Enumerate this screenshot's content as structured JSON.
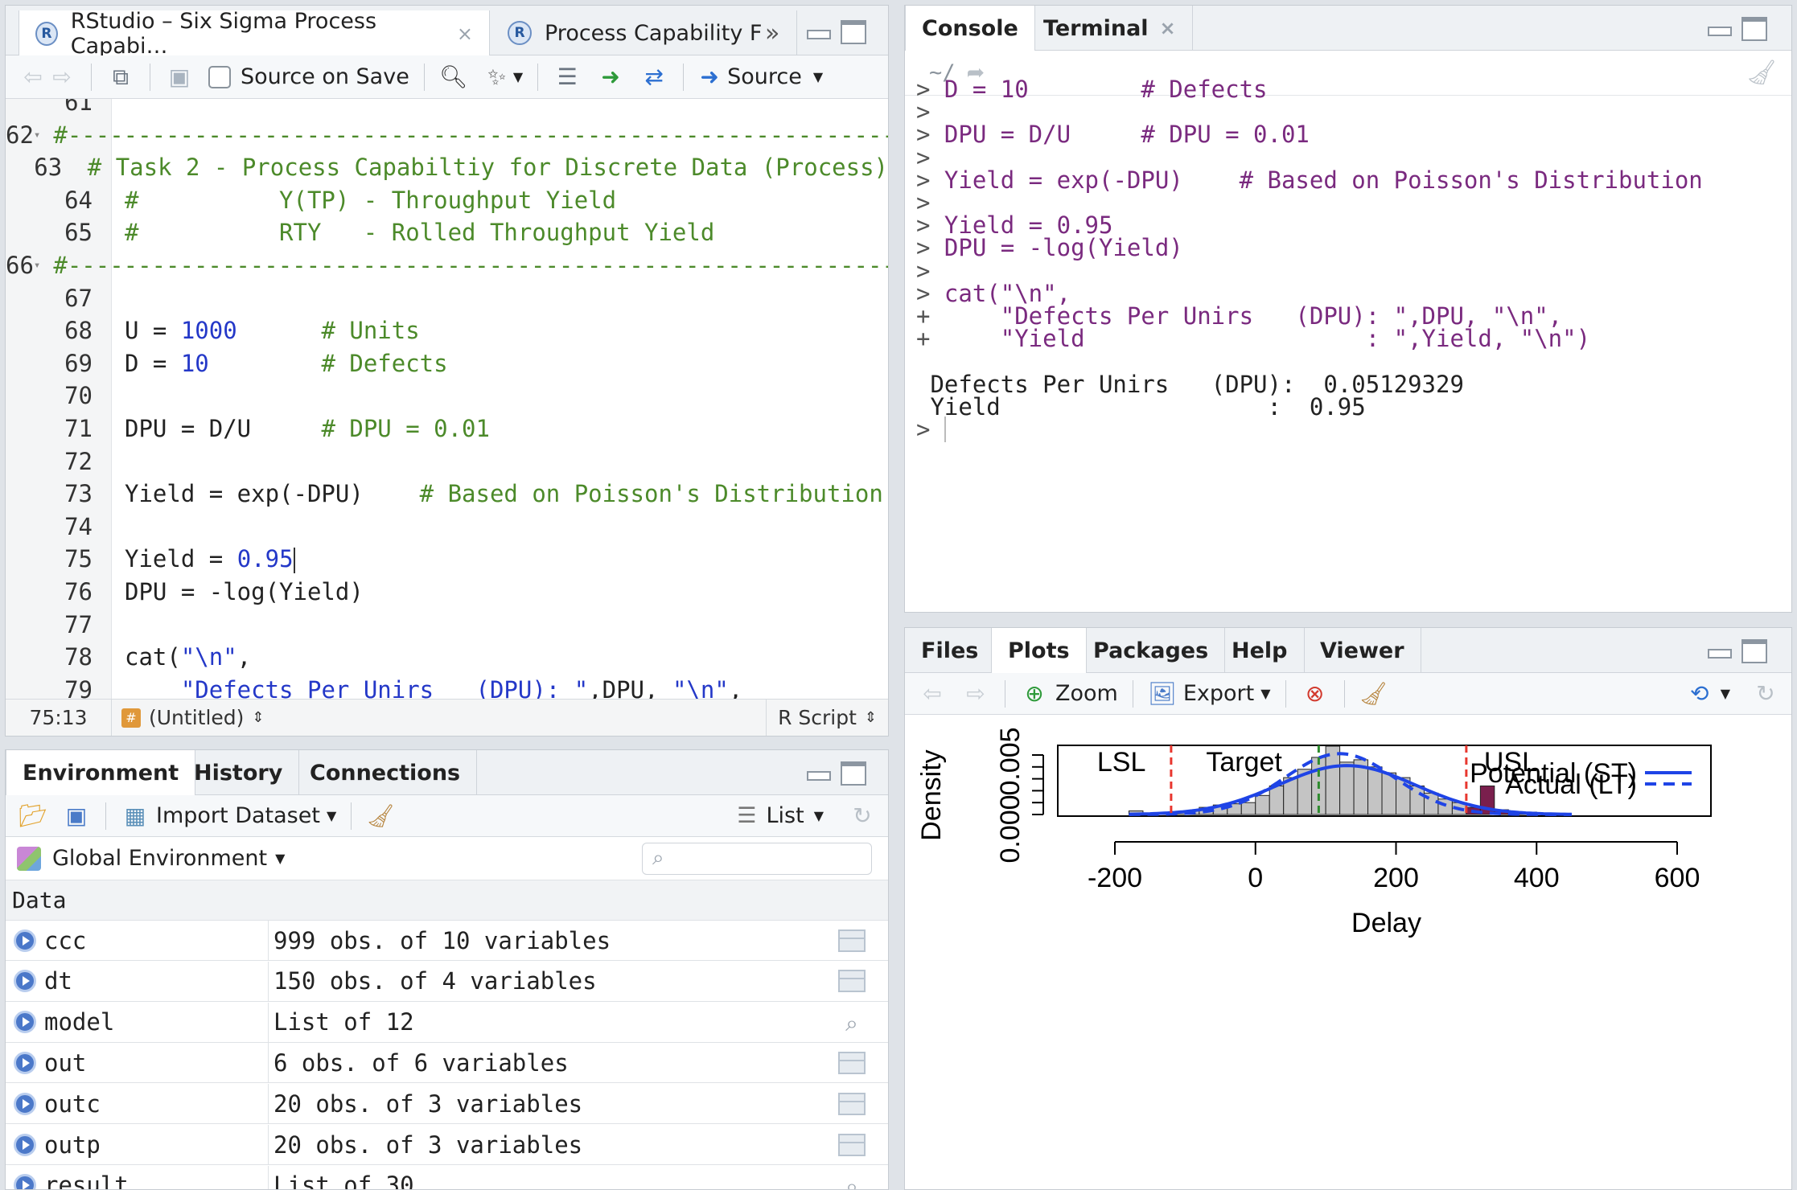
{
  "editor": {
    "tabs": [
      {
        "label": "RStudio – Six Sigma Process Capabi…",
        "close": "×"
      },
      {
        "label": "Process Capability Fu",
        "overflow": "»"
      }
    ],
    "toolbar": {
      "source_on_save": "Source on Save",
      "source": "Source"
    },
    "lines": [
      {
        "n": "61",
        "fold": "",
        "html": ""
      },
      {
        "n": "62",
        "fold": "▾",
        "parts": [
          [
            "cm",
            "#-----------------------------------------------------------"
          ]
        ]
      },
      {
        "n": "63",
        "fold": "",
        "parts": [
          [
            "cm",
            "# Task 2 - Process Capabiltiy for Discrete Data (Process)"
          ]
        ]
      },
      {
        "n": "64",
        "fold": "",
        "parts": [
          [
            "cm",
            "#          Y(TP) - Throughput Yield"
          ]
        ]
      },
      {
        "n": "65",
        "fold": "",
        "parts": [
          [
            "cm",
            "#          RTY   - Rolled Throughput Yield"
          ]
        ]
      },
      {
        "n": "66",
        "fold": "▾",
        "parts": [
          [
            "cm",
            "#-----------------------------------------------------------"
          ]
        ]
      },
      {
        "n": "67",
        "fold": "",
        "parts": []
      },
      {
        "n": "68",
        "fold": "",
        "parts": [
          [
            "",
            "U = "
          ],
          [
            "num",
            "1000"
          ],
          [
            "",
            "      "
          ],
          [
            "cm",
            "# Units"
          ]
        ]
      },
      {
        "n": "69",
        "fold": "",
        "parts": [
          [
            "",
            "D = "
          ],
          [
            "num",
            "10"
          ],
          [
            "",
            "        "
          ],
          [
            "cm",
            "# Defects"
          ]
        ]
      },
      {
        "n": "70",
        "fold": "",
        "parts": []
      },
      {
        "n": "71",
        "fold": "",
        "parts": [
          [
            "",
            "DPU = D/U     "
          ],
          [
            "cm",
            "# DPU = 0.01"
          ]
        ]
      },
      {
        "n": "72",
        "fold": "",
        "parts": []
      },
      {
        "n": "73",
        "fold": "",
        "parts": [
          [
            "",
            "Yield = exp(-DPU)    "
          ],
          [
            "cm",
            "# Based on Poisson's Distribution"
          ]
        ]
      },
      {
        "n": "74",
        "fold": "",
        "parts": []
      },
      {
        "n": "75",
        "fold": "",
        "parts": [
          [
            "",
            "Yield = "
          ],
          [
            "num",
            "0.95"
          ]
        ]
      },
      {
        "n": "76",
        "fold": "",
        "parts": [
          [
            "",
            "DPU = -log(Yield)"
          ]
        ]
      },
      {
        "n": "77",
        "fold": "",
        "parts": []
      },
      {
        "n": "78",
        "fold": "",
        "parts": [
          [
            "",
            "cat("
          ],
          [
            "str",
            "\"\\n\""
          ],
          [
            "",
            ","
          ]
        ]
      },
      {
        "n": "79",
        "fold": "",
        "parts": [
          [
            "",
            "    "
          ],
          [
            "str",
            "\"Defects Per Unirs   (DPU): \""
          ],
          [
            "",
            ",DPU, "
          ],
          [
            "str",
            "\"\\n\""
          ],
          [
            "",
            ","
          ]
        ]
      }
    ],
    "status": {
      "position": "75:13",
      "scope": "(Untitled)",
      "filetype": "R Script"
    }
  },
  "console": {
    "tabs": [
      {
        "label": "Console"
      },
      {
        "label": "Terminal",
        "close": "×"
      }
    ],
    "path": "~/",
    "lines": [
      {
        "p": ">",
        "t": " D = 10        # Defects",
        "k": "pk"
      },
      {
        "p": ">",
        "t": "",
        "k": "pk"
      },
      {
        "p": ">",
        "t": " DPU = D/U     # DPU = 0.01",
        "k": "pk"
      },
      {
        "p": ">",
        "t": "",
        "k": "pk"
      },
      {
        "p": ">",
        "t": " Yield = exp(-DPU)    # Based on Poisson's Distribution",
        "k": "pk"
      },
      {
        "p": ">",
        "t": "",
        "k": "pk"
      },
      {
        "p": ">",
        "t": " Yield = 0.95",
        "k": "pk"
      },
      {
        "p": ">",
        "t": " DPU = -log(Yield)",
        "k": "pk"
      },
      {
        "p": ">",
        "t": "",
        "k": "pk"
      },
      {
        "p": ">",
        "t": " cat(\"\\n\",",
        "k": "pk"
      },
      {
        "p": "+",
        "t": "     \"Defects Per Unirs   (DPU): \",DPU, \"\\n\",",
        "k": "pk"
      },
      {
        "p": "+",
        "t": "     \"Yield                    : \",Yield, \"\\n\")",
        "k": "pk"
      },
      {
        "p": "",
        "t": "",
        "k": ""
      },
      {
        "p": "",
        "t": " Defects Per Unirs   (DPU):  0.05129329",
        "k": ""
      },
      {
        "p": "",
        "t": " Yield                   :  0.95",
        "k": ""
      },
      {
        "p": ">",
        "t": " ",
        "k": "pk"
      }
    ]
  },
  "environment": {
    "tabs": [
      {
        "label": "Environment"
      },
      {
        "label": "History"
      },
      {
        "label": "Connections"
      }
    ],
    "import_dataset": "Import Dataset",
    "view_mode": "List",
    "scope": "Global Environment",
    "section": "Data",
    "rows": [
      {
        "name": "ccc",
        "value": "999 obs. of 10 variables",
        "icon": "grid"
      },
      {
        "name": "dt",
        "value": "150 obs. of 4 variables",
        "icon": "grid"
      },
      {
        "name": "model",
        "value": "List of 12",
        "icon": "search"
      },
      {
        "name": "out",
        "value": "6 obs. of 6 variables",
        "icon": "grid"
      },
      {
        "name": "outc",
        "value": "20 obs. of 3 variables",
        "icon": "grid"
      },
      {
        "name": "outp",
        "value": "20 obs. of 3 variables",
        "icon": "grid"
      },
      {
        "name": "result",
        "value": "List of 30",
        "icon": "search"
      }
    ]
  },
  "files": {
    "tabs": [
      {
        "label": "Files"
      },
      {
        "label": "Plots"
      },
      {
        "label": "Packages"
      },
      {
        "label": "Help"
      },
      {
        "label": "Viewer"
      }
    ],
    "zoom": "Zoom",
    "export": "Export"
  },
  "chart_data": {
    "type": "histogram",
    "title": "",
    "xlabel": "Delay",
    "ylabel": "Density",
    "xlim": [
      -200,
      600
    ],
    "ylim": [
      0,
      0.005
    ],
    "x_ticks": [
      "-200",
      "0",
      "200",
      "400",
      "600"
    ],
    "y_ticks": [
      "0.000",
      "0.005"
    ],
    "bins": [
      {
        "x0": -180,
        "x1": -160,
        "d": 0.0003
      },
      {
        "x0": -160,
        "x1": -140,
        "d": 0.0001
      },
      {
        "x0": -140,
        "x1": -120,
        "d": 0.0001
      },
      {
        "x0": -120,
        "x1": -100,
        "d": 0.0002
      },
      {
        "x0": -100,
        "x1": -80,
        "d": 0.0003
      },
      {
        "x0": -80,
        "x1": -60,
        "d": 0.0006
      },
      {
        "x0": -60,
        "x1": -40,
        "d": 0.0008
      },
      {
        "x0": -40,
        "x1": -20,
        "d": 0.0009
      },
      {
        "x0": -20,
        "x1": 0,
        "d": 0.001
      },
      {
        "x0": 0,
        "x1": 20,
        "d": 0.0016
      },
      {
        "x0": 20,
        "x1": 40,
        "d": 0.0024
      },
      {
        "x0": 40,
        "x1": 60,
        "d": 0.0031
      },
      {
        "x0": 60,
        "x1": 80,
        "d": 0.0038
      },
      {
        "x0": 80,
        "x1": 100,
        "d": 0.0048
      },
      {
        "x0": 100,
        "x1": 120,
        "d": 0.0058
      },
      {
        "x0": 120,
        "x1": 140,
        "d": 0.0044
      },
      {
        "x0": 140,
        "x1": 160,
        "d": 0.0046
      },
      {
        "x0": 160,
        "x1": 180,
        "d": 0.004
      },
      {
        "x0": 180,
        "x1": 200,
        "d": 0.0035
      },
      {
        "x0": 200,
        "x1": 220,
        "d": 0.0031
      },
      {
        "x0": 220,
        "x1": 240,
        "d": 0.0024
      },
      {
        "x0": 240,
        "x1": 260,
        "d": 0.0018
      },
      {
        "x0": 260,
        "x1": 280,
        "d": 0.0013
      },
      {
        "x0": 280,
        "x1": 300,
        "d": 0.001
      },
      {
        "x0": 300,
        "x1": 320,
        "d": 0.0006,
        "oos": true
      },
      {
        "x0": 320,
        "x1": 340,
        "d": 0.0024,
        "oos": true
      },
      {
        "x0": 340,
        "x1": 360,
        "d": 0.0004,
        "oos": true
      },
      {
        "x0": 360,
        "x1": 380,
        "d": 0.0001,
        "oos": true
      },
      {
        "x0": 380,
        "x1": 400,
        "d": 0.0002
      }
    ],
    "lsl": -120,
    "usl": 300,
    "target": 90,
    "lines_labels": {
      "lsl": "LSL",
      "target": "Target",
      "usl": "USL"
    },
    "curves": [
      {
        "name": "Potential (ST)",
        "style": "solid",
        "mean": 130,
        "sd": 97
      },
      {
        "name": "Actual (LT)",
        "style": "dashed",
        "mean": 120,
        "sd": 78
      }
    ],
    "colors": {
      "bars": "#c4c4c4",
      "oos_bars": "#7a1f4d",
      "curve": "#1f44e6",
      "spec": "#e8372f",
      "target": "#2e8b2e"
    }
  }
}
